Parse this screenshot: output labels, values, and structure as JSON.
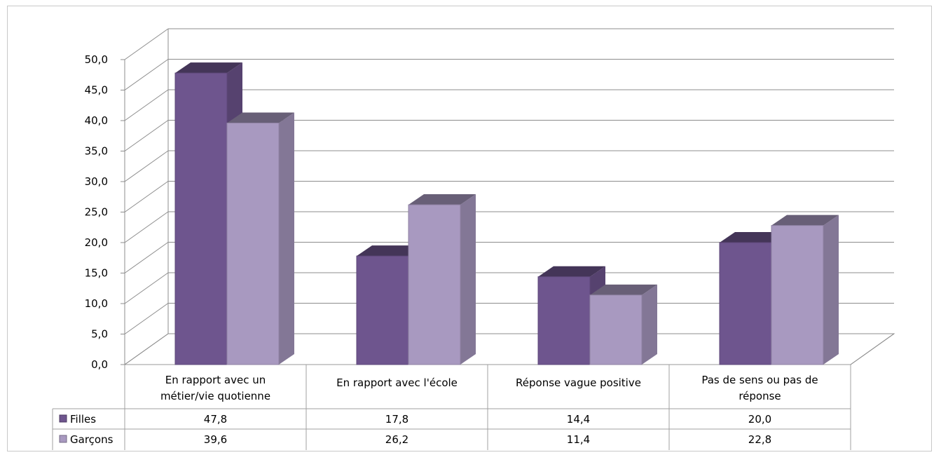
{
  "chart_data": {
    "type": "bar",
    "categories": [
      [
        "En rapport avec un",
        "métier/vie quotienne"
      ],
      [
        "En rapport avec l'école"
      ],
      [
        "Réponse vague positive"
      ],
      [
        "Pas de sens ou pas de",
        "réponse"
      ]
    ],
    "series": [
      {
        "name": "Filles",
        "values": [
          47.8,
          17.8,
          14.4,
          20.0
        ],
        "labels": [
          "47,8",
          "17,8",
          "14,4",
          "20,0"
        ],
        "color": "#6e558e"
      },
      {
        "name": "Garçons",
        "values": [
          39.6,
          26.2,
          11.4,
          22.8
        ],
        "labels": [
          "39,6",
          "26,2",
          "11,4",
          "22,8"
        ],
        "color": "#a899c0"
      }
    ],
    "yticks": [
      "0,0",
      "5,0",
      "10,0",
      "15,0",
      "20,0",
      "25,0",
      "30,0",
      "35,0",
      "40,0",
      "45,0",
      "50,0"
    ],
    "ylim": [
      0,
      50
    ],
    "grid": true,
    "data_table": true,
    "three_d": true
  }
}
